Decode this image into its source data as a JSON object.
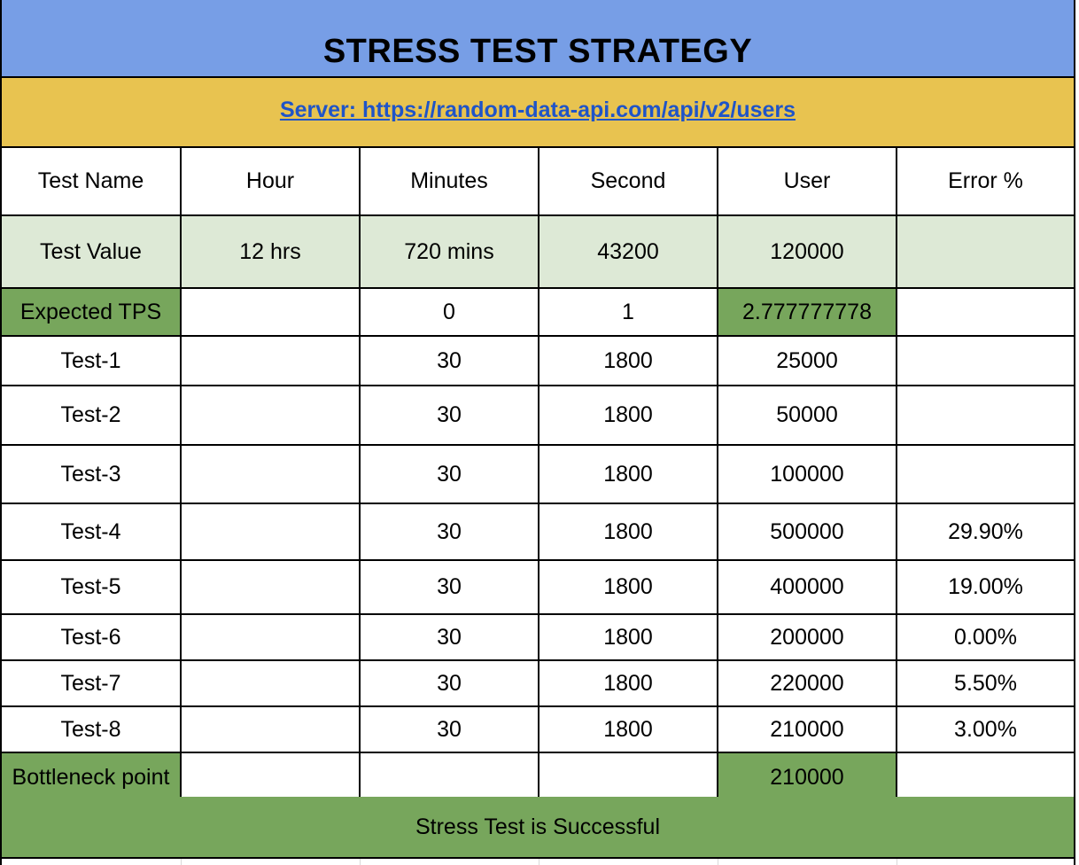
{
  "title": "STRESS TEST STRATEGY",
  "server_link": "Server: https://random-data-api.com/api/v2/users",
  "header": [
    "Test Name",
    "Hour",
    "Minutes",
    "Second",
    "User",
    "Error %"
  ],
  "test_value": [
    "Test Value",
    "12 hrs",
    "720 mins",
    "43200",
    "120000",
    ""
  ],
  "expected_tps": [
    "Expected TPS",
    "",
    "0",
    "1",
    "2.777777778",
    ""
  ],
  "tests": [
    [
      "Test-1",
      "",
      "30",
      "1800",
      "25000",
      ""
    ],
    [
      "Test-2",
      "",
      "30",
      "1800",
      "50000",
      ""
    ],
    [
      "Test-3",
      "",
      "30",
      "1800",
      "100000",
      ""
    ],
    [
      "Test-4",
      "",
      "30",
      "1800",
      "500000",
      "29.90%"
    ],
    [
      "Test-5",
      "",
      "30",
      "1800",
      "400000",
      "19.00%"
    ],
    [
      "Test-6",
      "",
      "30",
      "1800",
      "200000",
      "0.00%"
    ],
    [
      "Test-7",
      "",
      "30",
      "1800",
      "220000",
      "5.50%"
    ],
    [
      "Test-8",
      "",
      "30",
      "1800",
      "210000",
      "3.00%"
    ]
  ],
  "bottleneck": [
    "Bottleneck point",
    "",
    "",
    "",
    "210000",
    ""
  ],
  "result": "Stress Test is Successful",
  "colors": {
    "title_bg": "#779ee6",
    "server_bg": "#e8c350",
    "link": "#1f54c8",
    "light_green": "#dde9d6",
    "green": "#77a65c"
  }
}
